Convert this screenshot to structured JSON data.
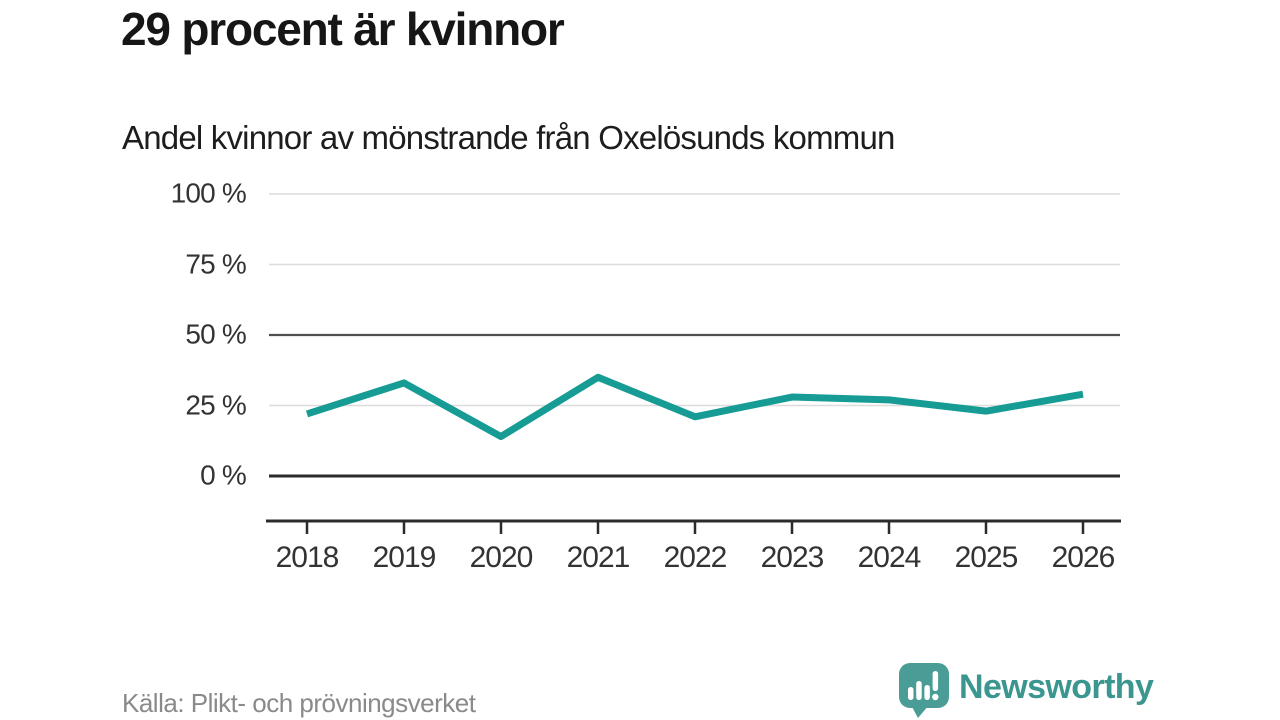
{
  "header": {
    "title": "29 procent är kvinnor",
    "subtitle": "Andel kvinnor av mönstrande från Oxelösunds kommun"
  },
  "footer": {
    "source": "Källa: Plikt- och prövningsverket"
  },
  "branding": {
    "name": "Newsworthy",
    "logo_icon": "speech-bubble-bar-chart-icon",
    "logo_color": "#4a9d96",
    "text_color": "#3a968f"
  },
  "chart_data": {
    "type": "line",
    "title": "29 procent är kvinnor",
    "subtitle": "Andel kvinnor av mönstrande från Oxelösunds kommun",
    "categories": [
      "2018",
      "2019",
      "2020",
      "2021",
      "2022",
      "2023",
      "2024",
      "2025",
      "2026"
    ],
    "series": [
      {
        "name": "Andel kvinnor av mönstrande",
        "values": [
          22,
          33,
          14,
          35,
          21,
          28,
          27,
          23,
          29
        ]
      }
    ],
    "unit": "%",
    "ylim": [
      0,
      100
    ],
    "y_ticks": [
      {
        "label": "100 %",
        "value": 100,
        "emphasized": false
      },
      {
        "label": "75 %",
        "value": 75,
        "emphasized": false
      },
      {
        "label": "50 %",
        "value": 50,
        "emphasized": true
      },
      {
        "label": "25 %",
        "value": 25,
        "emphasized": false
      },
      {
        "label": "0 %",
        "value": 0,
        "emphasized": true
      }
    ],
    "grid": "horizontal",
    "legend": "none",
    "line_color": "#169c94"
  }
}
